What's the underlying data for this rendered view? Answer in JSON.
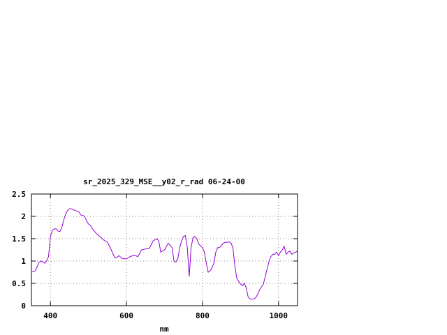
{
  "chart_data": {
    "type": "line",
    "title": "sr_2025_329_MSE__y02_r_rad 06-24-00",
    "xlabel": "nm",
    "ylabel": "",
    "xlim": [
      350,
      1050
    ],
    "ylim": [
      0,
      2.5
    ],
    "x_ticks": [
      400,
      600,
      800,
      1000
    ],
    "y_ticks": [
      0,
      0.5,
      1,
      1.5,
      2,
      2.5
    ],
    "x_tick_labels": [
      "400",
      "600",
      "800",
      "1000"
    ],
    "y_tick_labels": [
      "0",
      "0.5",
      "1",
      "1.5",
      "2",
      "2.5"
    ],
    "grid": true,
    "line_color": "#9400d3",
    "series": [
      {
        "x": [
          350,
          360,
          370,
          375,
          380,
          385,
          390,
          395,
          400,
          405,
          410,
          415,
          420,
          425,
          430,
          435,
          440,
          445,
          450,
          455,
          460,
          465,
          470,
          475,
          480,
          485,
          490,
          495,
          500,
          505,
          510,
          520,
          530,
          540,
          550,
          560,
          565,
          570,
          575,
          580,
          590,
          600,
          610,
          620,
          630,
          640,
          650,
          660,
          670,
          680,
          685,
          690,
          700,
          710,
          720,
          725,
          730,
          735,
          740,
          745,
          750,
          755,
          760,
          765,
          770,
          775,
          780,
          785,
          790,
          800,
          805,
          810,
          815,
          820,
          825,
          830,
          835,
          840,
          845,
          850,
          855,
          860,
          865,
          870,
          875,
          880,
          885,
          890,
          895,
          900,
          905,
          910,
          915,
          920,
          925,
          930,
          935,
          940,
          945,
          950,
          955,
          960,
          965,
          970,
          975,
          980,
          985,
          990,
          995,
          1000,
          1005,
          1010,
          1015,
          1020,
          1025,
          1030,
          1035,
          1040,
          1045,
          1050
        ],
        "values": [
          0.75,
          0.78,
          0.97,
          1.0,
          0.98,
          0.95,
          1.0,
          1.1,
          1.55,
          1.68,
          1.72,
          1.72,
          1.67,
          1.66,
          1.75,
          1.92,
          2.05,
          2.13,
          2.17,
          2.17,
          2.15,
          2.13,
          2.12,
          2.1,
          2.03,
          2.02,
          2.0,
          1.9,
          1.83,
          1.8,
          1.73,
          1.62,
          1.55,
          1.47,
          1.42,
          1.25,
          1.15,
          1.07,
          1.08,
          1.12,
          1.05,
          1.05,
          1.1,
          1.13,
          1.1,
          1.25,
          1.27,
          1.28,
          1.45,
          1.5,
          1.45,
          1.2,
          1.25,
          1.4,
          1.3,
          1.0,
          0.98,
          1.05,
          1.3,
          1.45,
          1.55,
          1.57,
          1.3,
          0.65,
          1.3,
          1.52,
          1.55,
          1.5,
          1.38,
          1.3,
          1.2,
          0.95,
          0.75,
          0.78,
          0.85,
          0.95,
          1.2,
          1.3,
          1.3,
          1.35,
          1.4,
          1.42,
          1.42,
          1.43,
          1.4,
          1.3,
          0.9,
          0.62,
          0.55,
          0.48,
          0.45,
          0.5,
          0.4,
          0.2,
          0.15,
          0.15,
          0.15,
          0.18,
          0.25,
          0.35,
          0.42,
          0.48,
          0.65,
          0.82,
          1.0,
          1.1,
          1.15,
          1.15,
          1.2,
          1.12,
          1.2,
          1.25,
          1.33,
          1.15,
          1.2,
          1.22,
          1.15,
          1.18,
          1.2,
          1.22
        ]
      }
    ]
  }
}
